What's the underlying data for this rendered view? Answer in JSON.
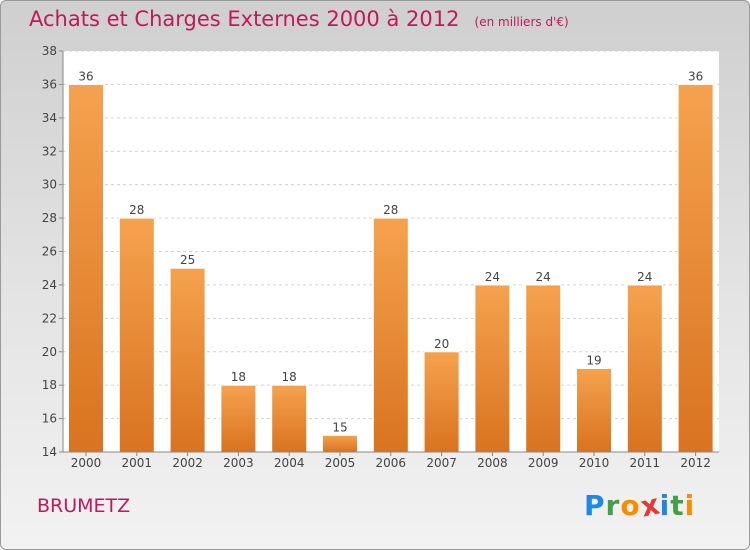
{
  "header": {
    "title": "Achats et Charges Externes 2000 à 2012",
    "unit": "(en milliers d'€)"
  },
  "commune": "BRUMETZ",
  "logo": {
    "letters": [
      "P",
      "r",
      "o",
      "x",
      "i",
      "t",
      "i"
    ],
    "colors": [
      "#1e88e5",
      "#43a047",
      "#fb8c00",
      "#e53935",
      "#1e88e5",
      "#43a047",
      "#fb8c00"
    ]
  },
  "chart_data": {
    "type": "bar",
    "categories": [
      "2000",
      "2001",
      "2002",
      "2003",
      "2004",
      "2005",
      "2006",
      "2007",
      "2008",
      "2009",
      "2010",
      "2011",
      "2012"
    ],
    "values": [
      36,
      28,
      25,
      18,
      18,
      15,
      28,
      20,
      24,
      24,
      19,
      24,
      36
    ],
    "value_labels": [
      "36",
      "28",
      "25",
      "18",
      "18",
      "15",
      "28",
      "20",
      "24",
      "24",
      "19",
      "24",
      "36"
    ],
    "title": "Achats et Charges Externes 2000 à 2012",
    "xlabel": "",
    "ylabel": "",
    "ylim": [
      14,
      38
    ],
    "yticks": [
      "14",
      "16",
      "18",
      "20",
      "22",
      "24",
      "26",
      "28",
      "30",
      "32",
      "34",
      "36",
      "38"
    ],
    "grid": true,
    "bar_color": "#f39c3c",
    "bar_color_dark": "#d9731f"
  }
}
